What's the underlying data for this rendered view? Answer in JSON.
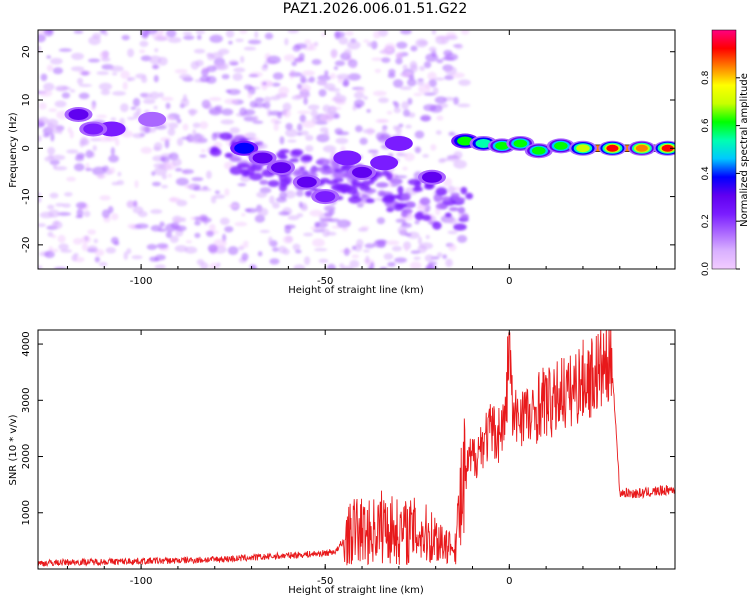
{
  "title": "PAZ1.2026.006.01.51.G22",
  "colors": {
    "snr_line": "#e8191b",
    "axes": "#000000",
    "colorbar": [
      "#f2ccff",
      "#d9b0ff",
      "#aa66ff",
      "#7a1cff",
      "#6000f0",
      "#0000ff",
      "#00c8ff",
      "#00ffb0",
      "#00ff00",
      "#c8ff00",
      "#ffff00",
      "#ff8000",
      "#ff0000",
      "#ff0080"
    ]
  },
  "chart_data": [
    {
      "type": "heatmap",
      "xlabel": "Height of straight line (km)",
      "ylabel": "Frequency (Hz)",
      "xlim": [
        -128,
        45
      ],
      "ylim": [
        -25,
        24.5
      ],
      "xticks": [
        -100,
        -50,
        0
      ],
      "yticks": [
        20,
        10,
        0,
        -10,
        -20
      ],
      "colorbar": {
        "label": "Normalized spectral amplitude",
        "range": [
          0,
          1
        ],
        "ticks": [
          0.0,
          0.2,
          0.4,
          0.6,
          0.8
        ]
      },
      "features": [
        {
          "x": -117,
          "y": 7,
          "amp": 0.32
        },
        {
          "x": -108,
          "y": 4,
          "amp": 0.22
        },
        {
          "x": -113,
          "y": 4,
          "amp": 0.26
        },
        {
          "x": -97,
          "y": 6,
          "amp": 0.15
        },
        {
          "x": -72,
          "y": 0,
          "amp": 0.4
        },
        {
          "x": -67,
          "y": -2,
          "amp": 0.3
        },
        {
          "x": -62,
          "y": -4,
          "amp": 0.3
        },
        {
          "x": -55,
          "y": -7,
          "amp": 0.28
        },
        {
          "x": -50,
          "y": -10,
          "amp": 0.25
        },
        {
          "x": -44,
          "y": -2,
          "amp": 0.2
        },
        {
          "x": -40,
          "y": -5,
          "amp": 0.3
        },
        {
          "x": -34,
          "y": -3,
          "amp": 0.22
        },
        {
          "x": -30,
          "y": 1,
          "amp": 0.2
        },
        {
          "x": -21,
          "y": -6,
          "amp": 0.3
        },
        {
          "x": -12,
          "y": 1.5,
          "amp": 0.58
        },
        {
          "x": -7,
          "y": 1.0,
          "amp": 0.55
        },
        {
          "x": -2,
          "y": 0.5,
          "amp": 0.6
        },
        {
          "x": 3,
          "y": 1.0,
          "amp": 0.62
        },
        {
          "x": 8,
          "y": -0.5,
          "amp": 0.6
        },
        {
          "x": 14,
          "y": 0.5,
          "amp": 0.62
        },
        {
          "x": 20,
          "y": 0,
          "amp": 0.7
        },
        {
          "x": 28,
          "y": 0,
          "amp": 0.9
        },
        {
          "x": 36,
          "y": 0,
          "amp": 0.85
        },
        {
          "x": 43,
          "y": 0,
          "amp": 0.9
        }
      ]
    },
    {
      "type": "line",
      "xlabel": "Height of straight line (km)",
      "ylabel": "SNR (10 * v/v)",
      "xlim": [
        -128,
        45
      ],
      "ylim": [
        0,
        4250
      ],
      "xticks": [
        -100,
        -50,
        0
      ],
      "yticks": [
        1000,
        2000,
        3000,
        4000
      ],
      "series": [
        {
          "x": [
            -128,
            -120,
            -110,
            -100,
            -90,
            -80,
            -70,
            -60,
            -55,
            -50,
            -47,
            -44,
            -42,
            -38,
            -34,
            -30,
            -26,
            -22,
            -18,
            -15,
            -13,
            -11,
            -9,
            -7,
            -5,
            -3,
            -1,
            0,
            1,
            2,
            4,
            6,
            8,
            10,
            12,
            14,
            16,
            18,
            20,
            22,
            24,
            26,
            28,
            30,
            35,
            40,
            45
          ],
          "values": [
            100,
            120,
            130,
            140,
            150,
            170,
            200,
            240,
            260,
            280,
            320,
            560,
            700,
            650,
            780,
            650,
            680,
            600,
            500,
            350,
            1200,
            1900,
            2050,
            2300,
            2450,
            2400,
            2650,
            4200,
            2550,
            2700,
            2850,
            2600,
            2950,
            3000,
            2900,
            3200,
            3100,
            3250,
            3350,
            3400,
            3500,
            3600,
            3550,
            1360,
            1340,
            1380,
            1420
          ]
        }
      ]
    }
  ]
}
